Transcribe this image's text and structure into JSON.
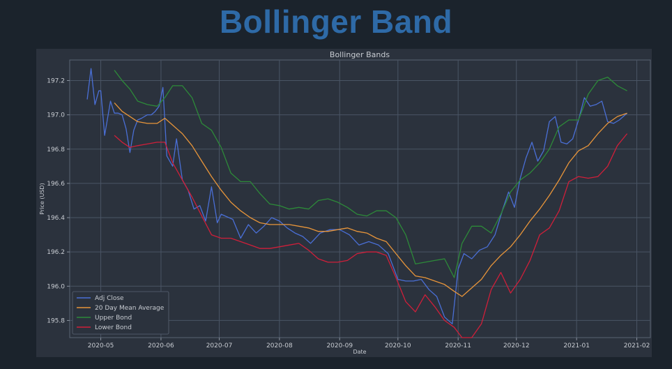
{
  "page": {
    "title": "Bollinger Band",
    "title_color": "#2e6aa7",
    "background_color": "#1b232c"
  },
  "chart_data": {
    "type": "line",
    "title": "Bollinger Bands",
    "xlabel": "Date",
    "ylabel": "Price (USD)",
    "x_axis_type": "date",
    "xlim": [
      "2020-04-15",
      "2021-02-08"
    ],
    "ylim": [
      195.7,
      197.32
    ],
    "x_ticks": [
      "2020-05-01",
      "2020-06-01",
      "2020-07-01",
      "2020-08-01",
      "2020-09-01",
      "2020-10-01",
      "2020-11-01",
      "2020-12-01",
      "2021-01-01",
      "2021-02-01"
    ],
    "x_tick_labels": [
      "2020-05",
      "2020-06",
      "2020-07",
      "2020-08",
      "2020-09",
      "2020-10",
      "2020-11",
      "2020-12",
      "2021-01",
      "2021-02"
    ],
    "y_ticks": [
      195.8,
      196.0,
      196.2,
      196.4,
      196.6,
      196.8,
      197.0,
      197.2
    ],
    "y_tick_labels": [
      "195.8",
      "196.0",
      "196.2",
      "196.4",
      "196.6",
      "196.8",
      "197.0",
      "197.2"
    ],
    "grid": true,
    "legend_position": "lower-left",
    "colors": {
      "plot_background": "#2b323d",
      "figure_background": "#2b323d",
      "grid": "#4a5565",
      "text": "#c8ccd2"
    },
    "series": [
      {
        "name": "Adj Close",
        "color": "#4a6fd6",
        "x": [
          "2020-04-24",
          "2020-04-26",
          "2020-04-28",
          "2020-04-30",
          "2020-05-01",
          "2020-05-03",
          "2020-05-06",
          "2020-05-08",
          "2020-05-10",
          "2020-05-12",
          "2020-05-14",
          "2020-05-16",
          "2020-05-18",
          "2020-05-20",
          "2020-05-22",
          "2020-05-25",
          "2020-05-27",
          "2020-05-29",
          "2020-05-31",
          "2020-06-02",
          "2020-06-04",
          "2020-06-07",
          "2020-06-09",
          "2020-06-12",
          "2020-06-15",
          "2020-06-18",
          "2020-06-21",
          "2020-06-24",
          "2020-06-27",
          "2020-06-30",
          "2020-07-02",
          "2020-07-04",
          "2020-07-08",
          "2020-07-12",
          "2020-07-16",
          "2020-07-20",
          "2020-07-24",
          "2020-07-28",
          "2020-08-01",
          "2020-08-05",
          "2020-08-09",
          "2020-08-13",
          "2020-08-17",
          "2020-08-22",
          "2020-08-27",
          "2020-09-01",
          "2020-09-06",
          "2020-09-11",
          "2020-09-16",
          "2020-09-21",
          "2020-09-26",
          "2020-10-01",
          "2020-10-05",
          "2020-10-09",
          "2020-10-13",
          "2020-10-17",
          "2020-10-21",
          "2020-10-25",
          "2020-10-29",
          "2020-11-01",
          "2020-11-04",
          "2020-11-08",
          "2020-11-12",
          "2020-11-16",
          "2020-11-20",
          "2020-11-24",
          "2020-11-27",
          "2020-11-30",
          "2020-12-03",
          "2020-12-06",
          "2020-12-09",
          "2020-12-12",
          "2020-12-15",
          "2020-12-18",
          "2020-12-21",
          "2020-12-24",
          "2020-12-27",
          "2020-12-30",
          "2021-01-02",
          "2021-01-05",
          "2021-01-08",
          "2021-01-11",
          "2021-01-14",
          "2021-01-17",
          "2021-01-20",
          "2021-01-23",
          "2021-01-27"
        ],
        "y": [
          197.09,
          197.27,
          197.06,
          197.14,
          197.14,
          196.88,
          197.08,
          197.01,
          197.01,
          197.0,
          196.92,
          196.78,
          196.91,
          196.97,
          196.98,
          197.0,
          197.0,
          197.02,
          197.05,
          197.16,
          196.76,
          196.7,
          196.86,
          196.62,
          196.56,
          196.45,
          196.47,
          196.38,
          196.58,
          196.37,
          196.42,
          196.41,
          196.39,
          196.28,
          196.36,
          196.31,
          196.35,
          196.4,
          196.38,
          196.34,
          196.31,
          196.29,
          196.25,
          196.31,
          196.33,
          196.33,
          196.3,
          196.24,
          196.26,
          196.24,
          196.19,
          196.04,
          196.03,
          196.03,
          196.04,
          195.98,
          195.94,
          195.82,
          195.78,
          196.1,
          196.19,
          196.16,
          196.21,
          196.23,
          196.3,
          196.45,
          196.55,
          196.46,
          196.63,
          196.75,
          196.84,
          196.73,
          196.79,
          196.96,
          196.99,
          196.84,
          196.83,
          196.86,
          196.97,
          197.1,
          197.05,
          197.06,
          197.08,
          196.96,
          196.95,
          196.97,
          197.01
        ]
      },
      {
        "name": "20 Day Mean Average",
        "color": "#e8953a",
        "x": [
          "2020-05-08",
          "2020-05-12",
          "2020-05-16",
          "2020-05-20",
          "2020-05-25",
          "2020-05-30",
          "2020-06-03",
          "2020-06-07",
          "2020-06-12",
          "2020-06-17",
          "2020-06-22",
          "2020-06-27",
          "2020-07-02",
          "2020-07-07",
          "2020-07-12",
          "2020-07-17",
          "2020-07-22",
          "2020-07-27",
          "2020-08-01",
          "2020-08-06",
          "2020-08-11",
          "2020-08-16",
          "2020-08-21",
          "2020-08-26",
          "2020-08-31",
          "2020-09-05",
          "2020-09-10",
          "2020-09-15",
          "2020-09-20",
          "2020-09-25",
          "2020-09-30",
          "2020-10-05",
          "2020-10-10",
          "2020-10-15",
          "2020-10-20",
          "2020-10-25",
          "2020-10-30",
          "2020-11-03",
          "2020-11-08",
          "2020-11-13",
          "2020-11-18",
          "2020-11-23",
          "2020-11-28",
          "2020-12-03",
          "2020-12-08",
          "2020-12-13",
          "2020-12-18",
          "2020-12-23",
          "2020-12-28",
          "2021-01-02",
          "2021-01-07",
          "2021-01-12",
          "2021-01-17",
          "2021-01-22",
          "2021-01-27"
        ],
        "y": [
          197.07,
          197.02,
          196.99,
          196.96,
          196.95,
          196.95,
          196.98,
          196.94,
          196.89,
          196.82,
          196.73,
          196.64,
          196.56,
          196.49,
          196.44,
          196.4,
          196.37,
          196.36,
          196.36,
          196.36,
          196.35,
          196.34,
          196.32,
          196.32,
          196.33,
          196.34,
          196.32,
          196.31,
          196.28,
          196.26,
          196.19,
          196.12,
          196.06,
          196.05,
          196.03,
          196.01,
          195.97,
          195.94,
          195.99,
          196.04,
          196.12,
          196.18,
          196.23,
          196.3,
          196.38,
          196.45,
          196.53,
          196.62,
          196.72,
          196.79,
          196.82,
          196.89,
          196.95,
          196.99,
          197.01
        ]
      },
      {
        "name": "Upper Bond",
        "color": "#2d8a39",
        "x": [
          "2020-05-08",
          "2020-05-12",
          "2020-05-16",
          "2020-05-20",
          "2020-05-25",
          "2020-05-30",
          "2020-06-03",
          "2020-06-07",
          "2020-06-12",
          "2020-06-17",
          "2020-06-22",
          "2020-06-27",
          "2020-07-02",
          "2020-07-07",
          "2020-07-12",
          "2020-07-17",
          "2020-07-22",
          "2020-07-27",
          "2020-08-01",
          "2020-08-06",
          "2020-08-11",
          "2020-08-16",
          "2020-08-21",
          "2020-08-26",
          "2020-08-31",
          "2020-09-05",
          "2020-09-10",
          "2020-09-15",
          "2020-09-20",
          "2020-09-25",
          "2020-09-30",
          "2020-10-05",
          "2020-10-10",
          "2020-10-15",
          "2020-10-20",
          "2020-10-25",
          "2020-10-30",
          "2020-11-03",
          "2020-11-08",
          "2020-11-13",
          "2020-11-18",
          "2020-11-23",
          "2020-11-28",
          "2020-12-03",
          "2020-12-08",
          "2020-12-13",
          "2020-12-18",
          "2020-12-23",
          "2020-12-28",
          "2021-01-02",
          "2021-01-07",
          "2021-01-12",
          "2021-01-17",
          "2021-01-22",
          "2021-01-27"
        ],
        "y": [
          197.26,
          197.2,
          197.15,
          197.08,
          197.06,
          197.05,
          197.1,
          197.17,
          197.17,
          197.1,
          196.95,
          196.91,
          196.81,
          196.66,
          196.61,
          196.61,
          196.54,
          196.48,
          196.47,
          196.45,
          196.46,
          196.45,
          196.5,
          196.51,
          196.49,
          196.46,
          196.42,
          196.41,
          196.44,
          196.44,
          196.4,
          196.3,
          196.13,
          196.14,
          196.15,
          196.16,
          196.05,
          196.25,
          196.35,
          196.35,
          196.31,
          196.42,
          196.55,
          196.62,
          196.66,
          196.72,
          196.8,
          196.93,
          196.97,
          196.97,
          197.12,
          197.2,
          197.22,
          197.17,
          197.14
        ]
      },
      {
        "name": "Lower Bond",
        "color": "#d01f3a",
        "x": [
          "2020-05-08",
          "2020-05-12",
          "2020-05-16",
          "2020-05-20",
          "2020-05-25",
          "2020-05-30",
          "2020-06-03",
          "2020-06-07",
          "2020-06-12",
          "2020-06-17",
          "2020-06-22",
          "2020-06-27",
          "2020-07-02",
          "2020-07-07",
          "2020-07-12",
          "2020-07-17",
          "2020-07-22",
          "2020-07-27",
          "2020-08-01",
          "2020-08-06",
          "2020-08-11",
          "2020-08-16",
          "2020-08-21",
          "2020-08-26",
          "2020-08-31",
          "2020-09-05",
          "2020-09-10",
          "2020-09-15",
          "2020-09-20",
          "2020-09-25",
          "2020-09-30",
          "2020-10-05",
          "2020-10-10",
          "2020-10-15",
          "2020-10-20",
          "2020-10-25",
          "2020-10-30",
          "2020-11-03",
          "2020-11-08",
          "2020-11-13",
          "2020-11-18",
          "2020-11-23",
          "2020-11-28",
          "2020-12-03",
          "2020-12-08",
          "2020-12-13",
          "2020-12-18",
          "2020-12-23",
          "2020-12-28",
          "2021-01-02",
          "2021-01-07",
          "2021-01-12",
          "2021-01-17",
          "2021-01-22",
          "2021-01-27"
        ],
        "y": [
          196.88,
          196.84,
          196.81,
          196.82,
          196.83,
          196.84,
          196.84,
          196.72,
          196.62,
          196.52,
          196.41,
          196.3,
          196.28,
          196.28,
          196.26,
          196.24,
          196.22,
          196.22,
          196.23,
          196.24,
          196.25,
          196.21,
          196.16,
          196.14,
          196.14,
          196.15,
          196.19,
          196.2,
          196.2,
          196.18,
          196.05,
          195.91,
          195.85,
          195.95,
          195.88,
          195.8,
          195.76,
          195.7,
          195.7,
          195.78,
          195.98,
          196.08,
          195.96,
          196.04,
          196.15,
          196.3,
          196.34,
          196.44,
          196.61,
          196.64,
          196.63,
          196.64,
          196.7,
          196.82,
          196.89
        ]
      }
    ]
  }
}
